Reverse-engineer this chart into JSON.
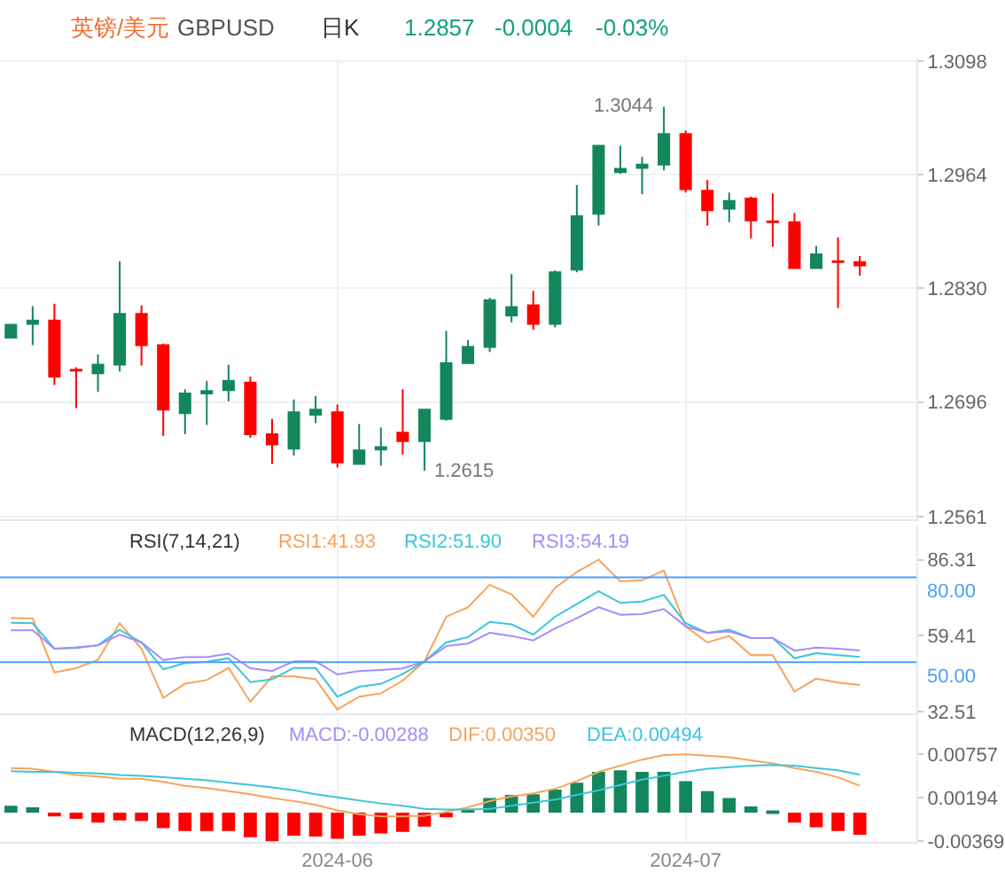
{
  "chart_data": [
    {
      "type": "candlestick",
      "title": "英镑/美元",
      "subtitle": "GBPUSD",
      "annotations": [
        "日K",
        "1.2857",
        "-0.0004",
        "-0.03%",
        "1.3044",
        "1.2615"
      ],
      "categories": [
        null,
        null,
        null,
        null,
        null,
        null,
        null,
        null,
        null,
        null,
        null,
        null,
        null,
        null,
        null,
        "2024-06",
        null,
        null,
        null,
        null,
        null,
        null,
        null,
        null,
        null,
        null,
        null,
        null,
        null,
        null,
        null,
        "2024-07",
        null,
        null,
        null,
        null,
        null,
        null,
        null,
        null
      ],
      "ohlc": [
        [
          1.2772,
          1.2787,
          1.2772,
          1.2787
        ],
        [
          1.2788,
          1.2809,
          1.2763,
          1.2792
        ],
        [
          1.2792,
          1.2812,
          1.2716,
          1.2726
        ],
        [
          1.2734,
          1.2737,
          1.2689,
          1.2733
        ],
        [
          1.273,
          1.2752,
          1.2708,
          1.274
        ],
        [
          1.274,
          1.2862,
          1.2732,
          1.28
        ],
        [
          1.28,
          1.281,
          1.2739,
          1.2763
        ],
        [
          1.2763,
          1.2765,
          1.2656,
          1.2687
        ],
        [
          1.2683,
          1.2711,
          1.2658,
          1.2706
        ],
        [
          1.2706,
          1.2721,
          1.2669,
          1.2709
        ],
        [
          1.271,
          1.274,
          1.2697,
          1.2721
        ],
        [
          1.2719,
          1.2726,
          1.2654,
          1.2658
        ],
        [
          1.2658,
          1.2676,
          1.2623,
          1.2646
        ],
        [
          1.2641,
          1.2699,
          1.2633,
          1.2684
        ],
        [
          1.2681,
          1.2703,
          1.2671,
          1.2687
        ],
        [
          1.2684,
          1.2693,
          1.2619,
          1.2625
        ],
        [
          1.2623,
          1.267,
          1.2623,
          1.2639
        ],
        [
          1.264,
          1.2666,
          1.2621,
          1.2643
        ],
        [
          1.266,
          1.2711,
          1.2634,
          1.265
        ],
        [
          1.265,
          1.2688,
          1.2615,
          1.2687
        ],
        [
          1.2676,
          1.278,
          1.2674,
          1.2742
        ],
        [
          1.2742,
          1.2769,
          1.2741,
          1.2761
        ],
        [
          1.2761,
          1.2819,
          1.2755,
          1.2816
        ],
        [
          1.2798,
          1.2847,
          1.279,
          1.2808
        ],
        [
          1.281,
          1.2827,
          1.2781,
          1.2788
        ],
        [
          1.2788,
          1.2851,
          1.2784,
          1.2849
        ],
        [
          1.2852,
          1.2952,
          1.2849,
          1.2915
        ],
        [
          1.2918,
          1.2998,
          1.2904,
          1.2998
        ],
        [
          1.2967,
          1.2998,
          1.2965,
          1.2971
        ],
        [
          1.2972,
          1.2985,
          1.2941,
          1.2976
        ],
        [
          1.2976,
          1.3044,
          1.2969,
          1.3012
        ],
        [
          1.3012,
          1.3016,
          1.2943,
          1.2947
        ],
        [
          1.2945,
          1.2958,
          1.2904,
          1.2922
        ],
        [
          1.2924,
          1.2943,
          1.2908,
          1.2933
        ],
        [
          1.2936,
          1.2938,
          1.2889,
          1.291
        ],
        [
          1.2909,
          1.2942,
          1.2879,
          1.2908
        ],
        [
          1.2908,
          1.2919,
          1.2853,
          1.2854
        ],
        [
          1.2854,
          1.288,
          1.2853,
          1.287
        ],
        [
          1.2862,
          1.289,
          1.2807,
          1.2861
        ],
        [
          1.2861,
          1.2868,
          1.2845,
          1.2857
        ]
      ],
      "colors": [
        "#14865c",
        "#14865c",
        "#ff0000",
        "#ff0000",
        "#14865c",
        "#14865c",
        "#ff0000",
        "#ff0000",
        "#14865c",
        "#14865c",
        "#14865c",
        "#ff0000",
        "#ff0000",
        "#14865c",
        "#14865c",
        "#ff0000",
        "#14865c",
        "#14865c",
        "#ff0000",
        "#14865c",
        "#14865c",
        "#14865c",
        "#14865c",
        "#14865c",
        "#ff0000",
        "#14865c",
        "#14865c",
        "#14865c",
        "#14865c",
        "#14865c",
        "#14865c",
        "#ff0000",
        "#ff0000",
        "#14865c",
        "#ff0000",
        "#ff0000",
        "#ff0000",
        "#14865c",
        "#ff0000",
        "#ff0000"
      ],
      "ylim": [
        1.2558,
        1.3101
      ],
      "yticks": [
        1.2561,
        1.2696,
        {
          "value": 1.283,
          "label": "1.2830"
        },
        1.2964,
        1.3098
      ],
      "grid": true,
      "legend": false,
      "tick_labels": "y"
    },
    {
      "type": "line",
      "title": "RSI(7,14,21)",
      "categories": [
        null,
        null,
        null,
        null,
        null,
        null,
        null,
        null,
        null,
        null,
        null,
        null,
        null,
        null,
        null,
        "2024-06",
        null,
        null,
        null,
        null,
        null,
        null,
        null,
        null,
        null,
        null,
        null,
        null,
        null,
        null,
        null,
        "2024-07",
        null,
        null,
        null,
        null,
        null,
        null,
        null,
        null
      ],
      "ylim": [
        31.9,
        98.7
      ],
      "yticks": [
        32.51,
        59.41,
        86.31
      ],
      "ref_lines": [
        {
          "axis": "y",
          "value": 80,
          "label": "80.00",
          "color": "#4a9ff5"
        },
        {
          "axis": "y",
          "value": 50,
          "label": "50.00",
          "color": "#4a9ff5"
        }
      ],
      "series": [
        {
          "name": "RSI1:41.93",
          "color": "#f7a35c",
          "values": [
            65.6,
            65.5,
            46.4,
            47.9,
            50.8,
            63.8,
            54.8,
            37.4,
            42.4,
            43.7,
            48,
            36,
            45,
            45,
            44,
            33.3,
            37.8,
            39,
            43.5,
            50.3,
            66.1,
            69.5,
            77.4,
            74,
            66.1,
            76.3,
            81.9,
            86.31,
            78.6,
            79,
            82.4,
            62.7,
            57,
            59.3,
            52.5,
            52.5,
            39.6,
            44.2,
            42.8,
            41.93
          ]
        },
        {
          "name": "RSI2:51.90",
          "color": "#3cc5dc",
          "values": [
            64,
            63.8,
            54.8,
            55,
            56,
            61.5,
            57,
            47.5,
            49.7,
            50.2,
            51.4,
            43,
            44,
            48,
            48,
            37.8,
            41.3,
            42.4,
            45.8,
            50.3,
            57,
            58.9,
            64.3,
            63.4,
            59.8,
            66.1,
            70.6,
            75.1,
            71,
            71.5,
            73.8,
            63.8,
            60.4,
            61.5,
            58.6,
            58.6,
            51.4,
            53.2,
            52.5,
            51.9
          ]
        },
        {
          "name": "RSI3:54.19",
          "color": "#a78bfa",
          "values": [
            61.3,
            61.3,
            54.8,
            55.3,
            56,
            59.8,
            57,
            50.8,
            51.8,
            51.8,
            53,
            47.9,
            46.9,
            50.3,
            50.3,
            45.7,
            46.9,
            47.3,
            47.8,
            50.3,
            55.7,
            56.6,
            60.4,
            59.3,
            57.7,
            62,
            65.6,
            69.5,
            66.8,
            67,
            68.8,
            62.7,
            60.4,
            60.9,
            58.6,
            58.6,
            54.1,
            55.2,
            54.8,
            54.19
          ]
        }
      ],
      "grid": "x",
      "legend": false,
      "tick_labels": "y"
    },
    {
      "type": "bar",
      "title": "MACD(12,26,9)",
      "annotations": [
        "MACD:-0.00288"
      ],
      "categories": [
        null,
        null,
        null,
        null,
        null,
        null,
        null,
        null,
        null,
        null,
        null,
        null,
        null,
        null,
        null,
        "2024-06",
        null,
        null,
        null,
        null,
        null,
        null,
        null,
        null,
        null,
        null,
        null,
        null,
        null,
        null,
        null,
        "2024-07",
        null,
        null,
        null,
        null,
        null,
        null,
        null,
        null
      ],
      "ylim": [
        -0.0038,
        0.0125
      ],
      "yticks": [
        -0.00369,
        0.00194,
        0.00757
      ],
      "series": [
        {
          "type": "bar",
          "colors": [
            "#14865c",
            "#14865c",
            "#ff0000",
            "#ff0000",
            "#ff0000",
            "#ff0000",
            "#ff0000",
            "#ff0000",
            "#ff0000",
            "#ff0000",
            "#ff0000",
            "#ff0000",
            "#ff0000",
            "#ff0000",
            "#ff0000",
            "#ff0000",
            "#ff0000",
            "#ff0000",
            "#ff0000",
            "#ff0000",
            "#ff0000",
            "#14865c",
            "#14865c",
            "#14865c",
            "#14865c",
            "#14865c",
            "#14865c",
            "#14865c",
            "#14865c",
            "#14865c",
            "#14865c",
            "#14865c",
            "#14865c",
            "#14865c",
            "#14865c",
            "#14865c",
            "#ff0000",
            "#ff0000",
            "#ff0000",
            "#ff0000"
          ],
          "values": [
            0.0009,
            0.0007,
            -0.0005,
            -0.0008,
            -0.0013,
            -0.001,
            -0.0011,
            -0.002,
            -0.0024,
            -0.0024,
            -0.0024,
            -0.0032,
            -0.0037,
            -0.003,
            -0.0031,
            -0.0034,
            -0.003,
            -0.0027,
            -0.0025,
            -0.0018,
            -0.0006,
            0.0005,
            0.0019,
            0.0023,
            0.0024,
            0.003,
            0.0039,
            0.0053,
            0.0055,
            0.0053,
            0.0053,
            0.0041,
            0.0028,
            0.0019,
            0.0008,
            0.0001,
            -0.0013,
            -0.0019,
            -0.0024,
            -0.00288
          ]
        },
        {
          "name": "DIF:0.00350",
          "type": "line",
          "color": "#f7a35c",
          "values": [
            0.0058,
            0.0057,
            0.0053,
            0.0049,
            0.0047,
            0.0044,
            0.0044,
            0.004,
            0.0035,
            0.0032,
            0.0028,
            0.0024,
            0.0019,
            0.0015,
            0.001,
            0.0003,
            -0.0002,
            -0.0005,
            -0.0005,
            -0.0004,
            0.0001,
            0.0007,
            0.0015,
            0.0021,
            0.0025,
            0.0031,
            0.0041,
            0.0053,
            0.0061,
            0.0069,
            0.0075,
            0.00757,
            0.0074,
            0.0072,
            0.0068,
            0.0064,
            0.0058,
            0.0053,
            0.0046,
            0.0035
          ]
        },
        {
          "name": "DEA:0.00494",
          "type": "line",
          "color": "#3cc5dc",
          "values": [
            0.0054,
            0.0053,
            0.0053,
            0.0052,
            0.0051,
            0.0049,
            0.0048,
            0.0046,
            0.0044,
            0.0042,
            0.0039,
            0.0036,
            0.0033,
            0.0029,
            0.0024,
            0.002,
            0.0016,
            0.0012,
            0.0009,
            0.0005,
            0.0004,
            0.0004,
            0.0005,
            0.0009,
            0.0013,
            0.0017,
            0.0023,
            0.0029,
            0.0036,
            0.0043,
            0.0048,
            0.0053,
            0.0057,
            0.0059,
            0.0061,
            0.0062,
            0.0061,
            0.0058,
            0.0055,
            0.00494
          ]
        }
      ],
      "grid": "x",
      "legend": false
    }
  ]
}
